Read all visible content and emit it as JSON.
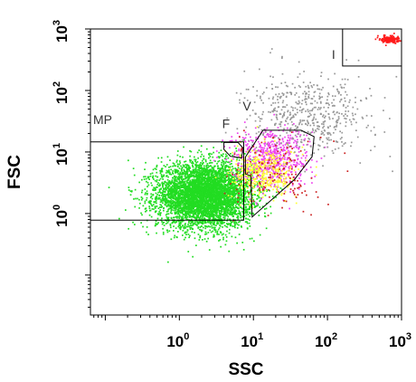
{
  "chart_data": {
    "type": "scatter",
    "xlabel": "SSC",
    "ylabel": "FSC",
    "xscale": "log",
    "yscale": "log",
    "xlim": [
      0.063,
      1000
    ],
    "ylim": [
      0.0224,
      1000
    ],
    "x_ticks": [
      {
        "base": "10",
        "exp": "0",
        "value": 1
      },
      {
        "base": "10",
        "exp": "1",
        "value": 10
      },
      {
        "base": "10",
        "exp": "2",
        "value": 100
      },
      {
        "base": "10",
        "exp": "3",
        "value": 1000
      }
    ],
    "y_ticks": [
      {
        "base": "10",
        "exp": "0",
        "value": 1
      },
      {
        "base": "10",
        "exp": "1",
        "value": 10
      },
      {
        "base": "10",
        "exp": "2",
        "value": 100
      },
      {
        "base": "10",
        "exp": "3",
        "value": 1000
      }
    ],
    "grid": false,
    "gates": [
      {
        "label": "MP",
        "shape": "rectangle",
        "ssc_range": [
          0.063,
          7.4
        ],
        "fsc_range": [
          0.78,
          14.6
        ]
      },
      {
        "label": "F",
        "shape": "polygon",
        "vertices": [
          [
            4.0,
            14.3
          ],
          [
            6.2,
            14.3
          ],
          [
            7.3,
            11.5
          ],
          [
            6.9,
            8.0
          ],
          [
            4.9,
            8.5
          ],
          [
            4.0,
            11.0
          ]
        ]
      },
      {
        "label": "V",
        "shape": "polygon",
        "vertices": [
          [
            7.8,
            8.3
          ],
          [
            13.5,
            22.6
          ],
          [
            44.0,
            22.6
          ],
          [
            66.0,
            17.8
          ],
          [
            62.0,
            8.4
          ],
          [
            36.0,
            3.6
          ],
          [
            9.6,
            0.88
          ],
          [
            9.2,
            4.1
          ],
          [
            7.8,
            4.4
          ]
        ]
      },
      {
        "label": "I",
        "shape": "rectangle",
        "ssc_range": [
          160,
          1000
        ],
        "fsc_range": [
          250,
          1000
        ]
      }
    ],
    "populations": [
      {
        "color": "#22dd22",
        "center": [
          2.2,
          2.0
        ],
        "log_spread": [
          0.32,
          0.26
        ],
        "count": 5200
      },
      {
        "color": "#ee44ee",
        "center": [
          17.0,
          8.0
        ],
        "log_spread": [
          0.26,
          0.24
        ],
        "count": 650
      },
      {
        "color": "#ffff33",
        "center": [
          14.0,
          4.5
        ],
        "log_spread": [
          0.22,
          0.2
        ],
        "count": 380
      },
      {
        "color": "#999999",
        "center": [
          55.0,
          40.0
        ],
        "log_spread": [
          0.42,
          0.32
        ],
        "count": 550
      },
      {
        "color": "#cc2222",
        "center": [
          20.0,
          4.5
        ],
        "log_spread": [
          0.3,
          0.3
        ],
        "count": 140
      },
      {
        "color": "#ff1a1a",
        "center": [
          700.0,
          680.0
        ],
        "log_spread": [
          0.06,
          0.03
        ],
        "count": 170
      }
    ]
  }
}
